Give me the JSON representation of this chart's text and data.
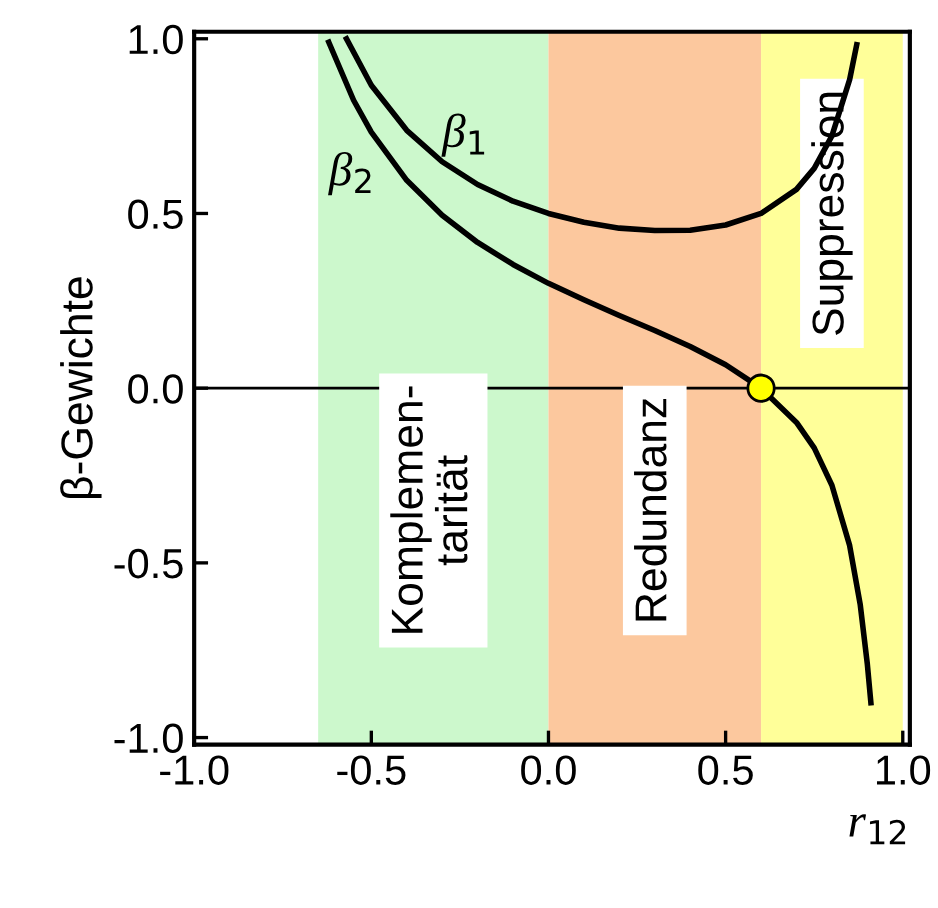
{
  "chart_data": {
    "type": "line",
    "xlabel": "r$_{12}$",
    "ylabel": "β-Gewichte",
    "xlim": [
      -1.0,
      1.02
    ],
    "ylim": [
      -1.02,
      1.02
    ],
    "xticks": [
      {
        "value": -1.0,
        "label": "-1.0"
      },
      {
        "value": -0.5,
        "label": "-0.5"
      },
      {
        "value": 0.0,
        "label": "0.0"
      },
      {
        "value": 0.5,
        "label": "0.5"
      },
      {
        "value": 1.0,
        "label": "1.0"
      }
    ],
    "yticks": [
      {
        "value": -1.0,
        "label": "-1.0"
      },
      {
        "value": -0.5,
        "label": "-0.5"
      },
      {
        "value": 0.0,
        "label": "0.0"
      },
      {
        "value": 0.5,
        "label": "0.5"
      },
      {
        "value": 1.0,
        "label": "1.0"
      }
    ],
    "grid": false,
    "legend": false,
    "marker": "none",
    "line_style": "solid",
    "series": [
      {
        "name": "β$_{1}$",
        "color": "#000000",
        "x": [
          -0.57,
          -0.5,
          -0.4,
          -0.3,
          -0.2,
          -0.1,
          0.0,
          0.1,
          0.2,
          0.3,
          0.4,
          0.5,
          0.6,
          0.7,
          0.75,
          0.8,
          0.85,
          0.87
        ],
        "values": [
          1.0,
          0.867,
          0.738,
          0.648,
          0.583,
          0.535,
          0.5,
          0.475,
          0.458,
          0.451,
          0.452,
          0.467,
          0.5,
          0.569,
          0.629,
          0.722,
          0.883,
          0.983
        ]
      },
      {
        "name": "β$_{2}$",
        "color": "#000000",
        "x": [
          -0.62,
          -0.55,
          -0.5,
          -0.4,
          -0.3,
          -0.2,
          -0.1,
          0.0,
          0.1,
          0.2,
          0.3,
          0.4,
          0.5,
          0.6,
          0.7,
          0.75,
          0.8,
          0.85,
          0.88,
          0.9,
          0.91
        ],
        "values": [
          0.99,
          0.824,
          0.733,
          0.595,
          0.495,
          0.417,
          0.354,
          0.3,
          0.253,
          0.208,
          0.165,
          0.119,
          0.067,
          0.0,
          -0.098,
          -0.171,
          -0.278,
          -0.45,
          -0.62,
          -0.79,
          -0.9
        ]
      },
      {
        "type": "scatter",
        "color": "#ffff00",
        "marker": "circle",
        "x": [
          0.6
        ],
        "values": [
          0.0
        ]
      }
    ],
    "bands": [
      {
        "axis": "x",
        "from": -0.65,
        "to": 0.0,
        "label": "Komplemen-\ntarität",
        "color": "#ccf8cc"
      },
      {
        "axis": "x",
        "from": 0.0,
        "to": 0.6,
        "label": "Redundanz",
        "color": "#fcc89e"
      },
      {
        "axis": "x",
        "from": 0.6,
        "to": 1.0,
        "label": "Suppression",
        "color": "#ffff99"
      }
    ],
    "ref_lines": [
      {
        "axis": "y",
        "value": 0.0,
        "color": "#000000"
      }
    ]
  }
}
